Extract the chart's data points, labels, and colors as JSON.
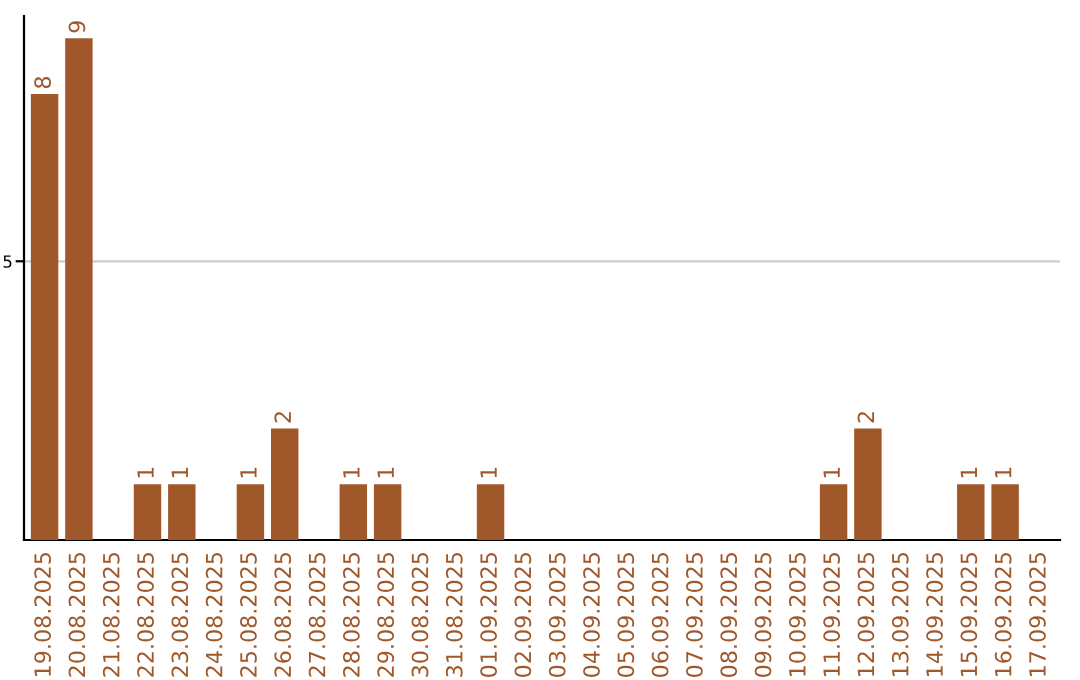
{
  "chart_data": {
    "type": "bar",
    "categories": [
      "19.08.2025",
      "20.08.2025",
      "21.08.2025",
      "22.08.2025",
      "23.08.2025",
      "24.08.2025",
      "25.08.2025",
      "26.08.2025",
      "27.08.2025",
      "28.08.2025",
      "29.08.2025",
      "30.08.2025",
      "31.08.2025",
      "01.09.2025",
      "02.09.2025",
      "03.09.2025",
      "04.09.2025",
      "05.09.2025",
      "06.09.2025",
      "07.09.2025",
      "08.09.2025",
      "09.09.2025",
      "10.09.2025",
      "11.09.2025",
      "12.09.2025",
      "13.09.2025",
      "14.09.2025",
      "15.09.2025",
      "16.09.2025",
      "17.09.2025"
    ],
    "values": [
      8,
      9,
      0,
      1,
      1,
      0,
      1,
      2,
      0,
      1,
      1,
      0,
      0,
      1,
      0,
      0,
      0,
      0,
      0,
      0,
      0,
      0,
      0,
      1,
      2,
      0,
      0,
      1,
      1,
      0
    ],
    "value_labels": [
      "8",
      "9",
      null,
      "1",
      "1",
      null,
      "1",
      "2",
      null,
      "1",
      "1",
      null,
      null,
      "1",
      null,
      null,
      null,
      null,
      null,
      null,
      null,
      null,
      null,
      "1",
      "2",
      null,
      null,
      "1",
      "1",
      null
    ],
    "color": "#a0582a",
    "ylim": [
      0,
      9.4
    ],
    "yticks": [
      5
    ],
    "grid": "y"
  }
}
